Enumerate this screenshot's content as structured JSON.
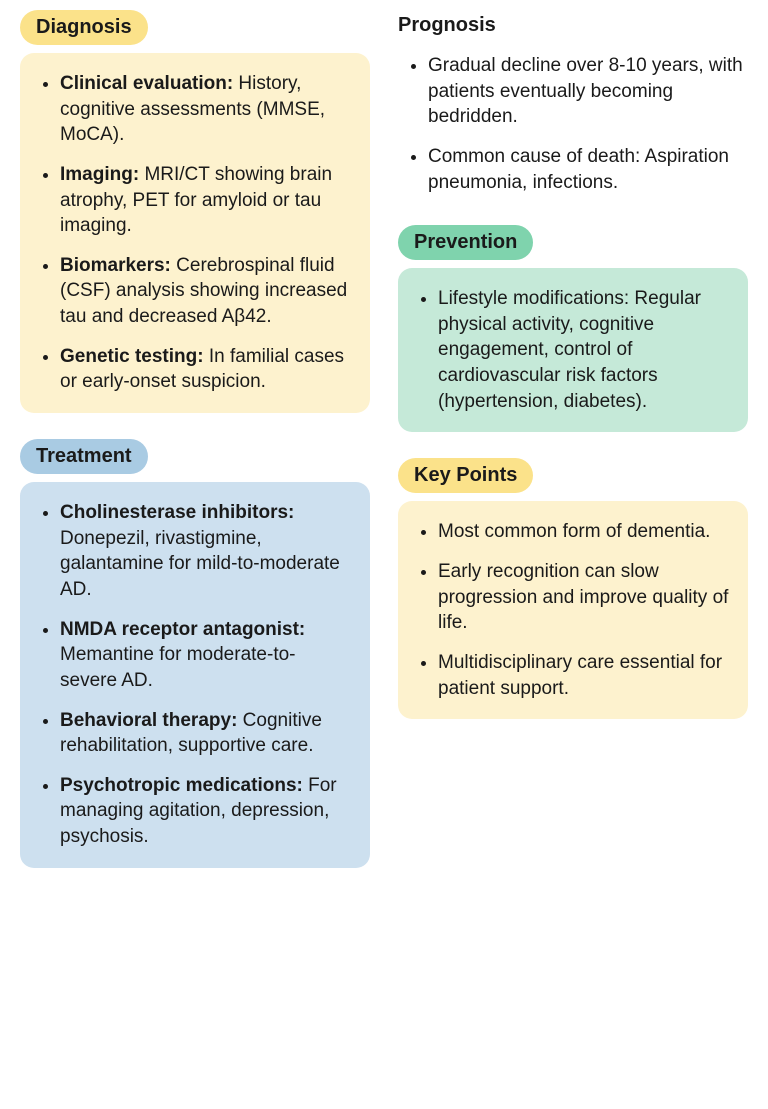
{
  "colors": {
    "diag_pill": "#fbe28a",
    "diag_panel": "#fdf2ce",
    "treat_pill": "#a9cbe3",
    "treat_panel": "#cde0ef",
    "prev_pill": "#7fd3ad",
    "prev_panel": "#c5e9d8",
    "key_pill": "#fbe28a",
    "key_panel": "#fdf2ce",
    "text": "#1a1a1a"
  },
  "left": [
    {
      "id": "diagnosis",
      "title": "Diagnosis",
      "pill_bg": "#fbe28a",
      "panel_bg": "#fdf2ce",
      "has_panel": true,
      "items": [
        {
          "lead": "Clinical evaluation:",
          "text": " History, cognitive assessments (MMSE, MoCA)."
        },
        {
          "lead": "Imaging:",
          "text": " MRI/CT showing brain atrophy, PET for amyloid or tau imaging."
        },
        {
          "lead": "Biomarkers:",
          "text": " Cerebrospinal fluid (CSF) analysis showing increased tau and decreased Aβ42."
        },
        {
          "lead": "Genetic testing:",
          "text": " In familial cases or early-onset suspicion."
        }
      ]
    },
    {
      "id": "treatment",
      "title": "Treatment",
      "pill_bg": "#a9cbe3",
      "panel_bg": "#cde0ef",
      "has_panel": true,
      "items": [
        {
          "lead": "Cholinesterase inhibitors:",
          "text": " Donepezil, rivastigmine, galantamine for mild-to-moderate AD."
        },
        {
          "lead": "NMDA receptor antagonist:",
          "text": " Memantine for moderate-to-severe AD."
        },
        {
          "lead": "Behavioral therapy:",
          "text": " Cognitive rehabilitation, supportive care."
        },
        {
          "lead": "Psychotropic medications:",
          "text": " For managing agitation, depression, psychosis."
        }
      ]
    }
  ],
  "right": [
    {
      "id": "prognosis",
      "title": "Prognosis",
      "pill_bg": "",
      "panel_bg": "",
      "has_panel": false,
      "items": [
        {
          "lead": "",
          "text": "Gradual decline over 8-10 years, with patients eventually becoming bedridden."
        },
        {
          "lead": "",
          "text": "Common cause of death: Aspiration pneumonia, infections."
        }
      ]
    },
    {
      "id": "prevention",
      "title": "Prevention",
      "pill_bg": "#7fd3ad",
      "panel_bg": "#c5e9d8",
      "has_panel": true,
      "items": [
        {
          "lead": "",
          "text": "Lifestyle modifications: Regular physical activity, cognitive engagement, control of cardiovascular risk factors (hypertension, diabetes)."
        }
      ]
    },
    {
      "id": "keypoints",
      "title": "Key Points",
      "pill_bg": "#fbe28a",
      "panel_bg": "#fdf2ce",
      "has_panel": true,
      "items": [
        {
          "lead": "",
          "text": "Most common form of dementia."
        },
        {
          "lead": "",
          "text": "Early recognition can slow progression and improve quality of life."
        },
        {
          "lead": "",
          "text": "Multidisciplinary care essential for patient support."
        }
      ]
    }
  ]
}
